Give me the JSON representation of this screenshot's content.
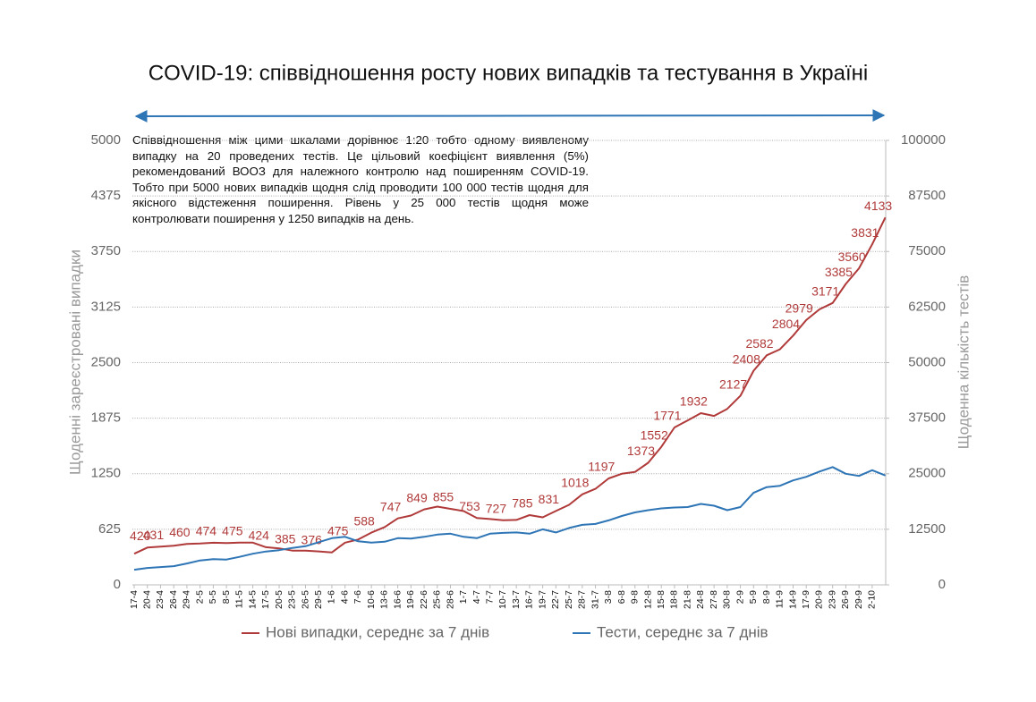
{
  "chart_data": {
    "type": "line",
    "title": "COVID-19: співвідношення росту нових випадків та тестування в Україні",
    "annotation": "Співвідношення між цими шкалами дорівнює 1:20 тобто одному виявленому випадку на 20 проведених тестів. Це цільовий коефіцієнт виявлення (5%) рекомендований ВООЗ для належного контролю над поширенням COVID-19. Тобто при 5000 нових випадків щодня слід проводити 100 000 тестів щодня для якісного відстеження поширення. Рівень у 25 000 тестів щодня може контролювати поширення у 1250 випадків на день.",
    "ylabel": "Щоденні зареєстровані випадки",
    "y2label": "Щоденна кількість тестів",
    "categories": [
      "17-4",
      "20-4",
      "23-4",
      "26-4",
      "29-4",
      "2-5",
      "5-5",
      "8-5",
      "11-5",
      "14-5",
      "17-5",
      "20-5",
      "23-5",
      "26-5",
      "29-5",
      "1-6",
      "4-6",
      "7-6",
      "10-6",
      "13-6",
      "16-6",
      "19-6",
      "22-6",
      "25-6",
      "28-6",
      "1-7",
      "4-7",
      "7-7",
      "10-7",
      "13-7",
      "16-7",
      "19-7",
      "22-7",
      "25-7",
      "28-7",
      "31-7",
      "3-8",
      "6-8",
      "9-8",
      "12-8",
      "15-8",
      "18-8",
      "21-8",
      "24-8",
      "27-8",
      "30-8",
      "2-9",
      "5-9",
      "8-9",
      "11-9",
      "14-9",
      "17-9",
      "20-9",
      "23-9",
      "26-9",
      "29-9",
      "2-10",
      null
    ],
    "series": [
      {
        "name": "Нові випадки, середнє за 7 днів",
        "color": "#b03a3a",
        "axis": "y",
        "values": [
          350,
          420,
          431,
          440,
          460,
          465,
          474,
          470,
          475,
          475,
          424,
          410,
          385,
          385,
          376,
          365,
          475,
          510,
          588,
          650,
          747,
          780,
          849,
          880,
          855,
          830,
          753,
          740,
          727,
          730,
          785,
          760,
          831,
          900,
          1018,
          1080,
          1197,
          1250,
          1270,
          1373,
          1552,
          1771,
          1850,
          1932,
          1900,
          1980,
          2127,
          2408,
          2582,
          2650,
          2804,
          2979,
          3100,
          3171,
          3385,
          3560,
          3831,
          4133
        ],
        "value_labels": [
          null,
          "420",
          "431",
          null,
          "460",
          null,
          "474",
          null,
          "475",
          null,
          "424",
          null,
          "385",
          null,
          "376",
          null,
          "475",
          null,
          "588",
          null,
          "747",
          null,
          "849",
          null,
          "855",
          null,
          "753",
          null,
          "727",
          null,
          "785",
          null,
          "831",
          null,
          "1018",
          null,
          "1197",
          null,
          null,
          "1373",
          "1552",
          "1771",
          null,
          "1932",
          null,
          null,
          "2127",
          "2408",
          "2582",
          null,
          "2804",
          "2979",
          null,
          "3171",
          "3385",
          "3560",
          "3831",
          "4133"
        ]
      },
      {
        "name": "Тести, середнє за 7 днів",
        "color": "#2e75b6",
        "axis": "y2",
        "values": [
          3400,
          3800,
          4000,
          4200,
          4800,
          5500,
          5800,
          5700,
          6300,
          7000,
          7500,
          7800,
          8300,
          8700,
          9600,
          10500,
          10800,
          9800,
          9500,
          9700,
          10500,
          10400,
          10800,
          11300,
          11500,
          10800,
          10500,
          11500,
          11700,
          11800,
          11500,
          12500,
          11800,
          12800,
          13500,
          13700,
          14500,
          15500,
          16300,
          16800,
          17200,
          17400,
          17500,
          18200,
          17800,
          16800,
          17500,
          20700,
          22000,
          22300,
          23500,
          24300,
          25500,
          26500,
          25000,
          24500,
          25800,
          24600
        ]
      }
    ],
    "ylim": [
      0,
      5000
    ],
    "yticks": [
      0,
      625,
      1250,
      1875,
      2500,
      3125,
      3750,
      4375,
      5000
    ],
    "y2lim": [
      0,
      100000
    ],
    "y2ticks": [
      0,
      12500,
      25000,
      37500,
      50000,
      62500,
      75000,
      87500,
      100000
    ],
    "grid": true,
    "legend": "bottom"
  }
}
